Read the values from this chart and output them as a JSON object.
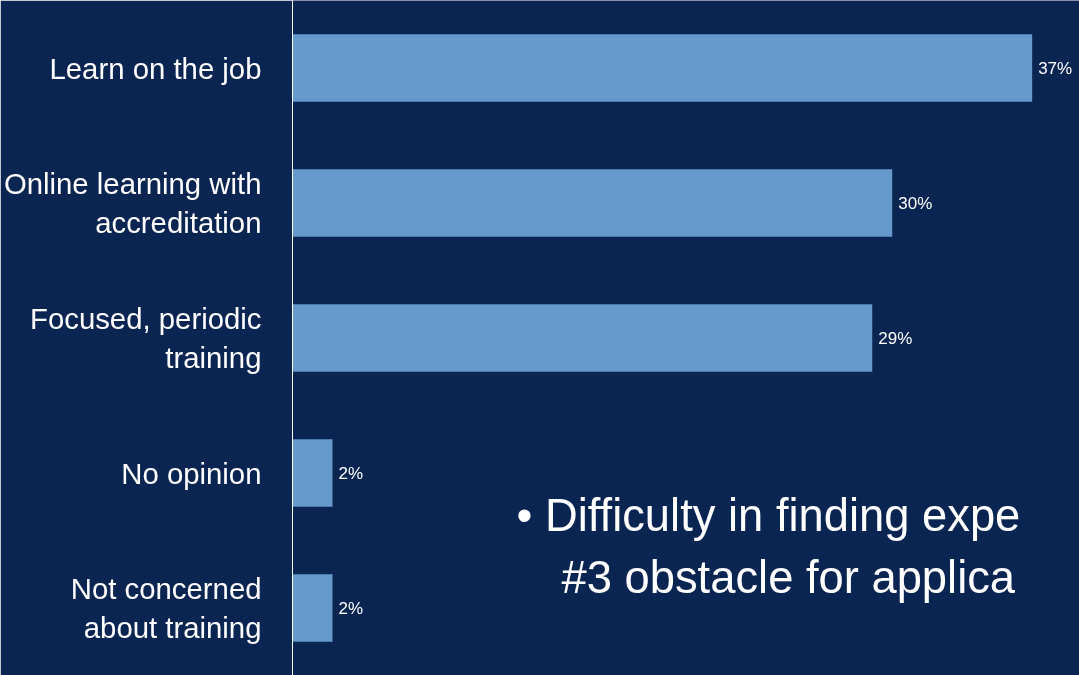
{
  "chart_data": {
    "type": "bar",
    "orientation": "horizontal",
    "categories": [
      "Learn on the job",
      "Online learning with\naccreditation",
      "Focused, periodic\ntraining",
      "No opinion",
      "Not concerned\nabout training"
    ],
    "values": [
      37,
      30,
      29,
      2,
      2
    ],
    "value_labels": [
      "37%",
      "30%",
      "29%",
      "2%",
      "2%"
    ],
    "color": "#6699cc",
    "annotations": [
      "• Difficulty in finding expe",
      "#3 obstacle for applica"
    ]
  }
}
